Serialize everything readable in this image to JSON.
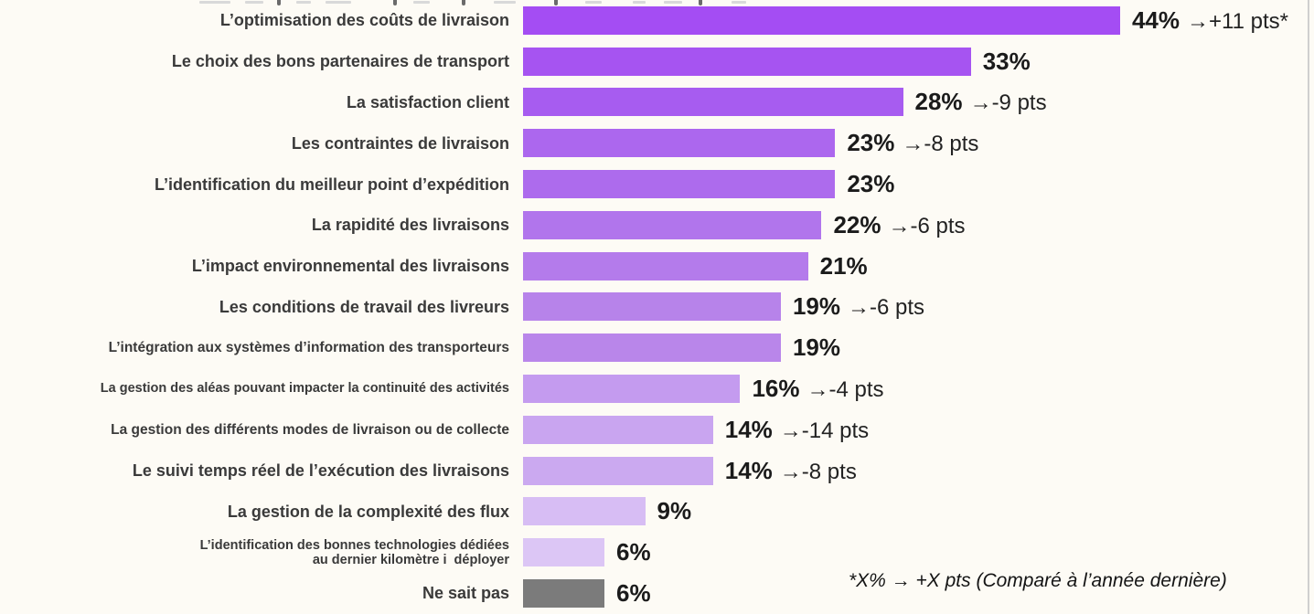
{
  "chart_data": {
    "type": "bar",
    "orientation": "horizontal",
    "title": "",
    "xlabel": "",
    "ylabel": "",
    "xlim": [
      0,
      47
    ],
    "grid": false,
    "legend": false,
    "value_unit": "%",
    "footnote": "*X% → +X pts (Comparé à l’année dernière)",
    "categories": [
      "L’optimisation des coûts de livraison",
      "Le choix des bons partenaires de transport",
      "La satisfaction client",
      "Les contraintes de livraison",
      "L’identification du meilleur point d’expédition",
      "La rapidité des livraisons",
      "L’impact environnemental des livraisons",
      "Les conditions de travail des livreurs",
      "L’intégration aux systèmes d’information des transporteurs",
      "La gestion des aléas pouvant impacter la continuité des activités",
      "La gestion des différents modes de livraison ou de collecte",
      "Le suivi temps réel de l’exécution des livraisons",
      "La gestion de la complexité des flux",
      "L’identification des bonnes technologies dédiées au dernier kilomètre i déployer",
      "Ne sait pas"
    ],
    "rows": [
      {
        "label": "L’optimisation des coûts de livraison",
        "value": 44,
        "value_label": "44%",
        "change": "→+11 pts*",
        "color": "#A44DF3"
      },
      {
        "label": "Le choix des bons partenaires de transport",
        "value": 33,
        "value_label": "33%",
        "change": null,
        "color": "#A654F1"
      },
      {
        "label": "La satisfaction client",
        "value": 28,
        "value_label": "28%",
        "change": "→-9 pts",
        "color": "#A75CF0"
      },
      {
        "label": "Les contraintes de livraison",
        "value": 23,
        "value_label": "23%",
        "change": "→-8 pts",
        "color": "#AC67EE"
      },
      {
        "label": "L’identification du meilleur point d’expédition",
        "value": 23,
        "value_label": "23%",
        "change": null,
        "color": "#AD6BED"
      },
      {
        "label": "La rapidité des livraisons",
        "value": 22,
        "value_label": "22%",
        "change": "→-6 pts",
        "color": "#B175EC"
      },
      {
        "label": "L’impact environnemental des livraisons",
        "value": 21,
        "value_label": "21%",
        "change": null,
        "color": "#B47BEB"
      },
      {
        "label": "Les conditions de travail des livreurs",
        "value": 19,
        "value_label": "19%",
        "change": "→-6 pts",
        "color": "#B783EA"
      },
      {
        "label": "L’intégration aux systèmes d’information des transporteurs",
        "value": 19,
        "value_label": "19%",
        "change": null,
        "color": "#B986EA"
      },
      {
        "label": "La gestion des aléas pouvant impacter la continuité des activités",
        "value": 16,
        "value_label": "16%",
        "change": "→-4 pts",
        "color": "#C49BEF"
      },
      {
        "label": "La gestion des différents modes de livraison ou de collecte",
        "value": 14,
        "value_label": "14%",
        "change": "→-14 pts",
        "color": "#C9A5F0"
      },
      {
        "label": "Le suivi temps réel de l’exécution des livraisons",
        "value": 14,
        "value_label": "14%",
        "change": "→-8 pts",
        "color": "#CBA9F0"
      },
      {
        "label": "La gestion de la complexité des flux",
        "value": 9,
        "value_label": "9%",
        "change": null,
        "color": "#D7BDF4"
      },
      {
        "label": "L’identification des bonnes technologies dédiées\nau dernier kilomètre i  déployer",
        "value": 6,
        "value_label": "6%",
        "change": null,
        "color": "#DCC6F5"
      },
      {
        "label": "Ne sait pas",
        "value": 6,
        "value_label": "6%",
        "change": null,
        "color": "#7B7B7B"
      }
    ]
  }
}
